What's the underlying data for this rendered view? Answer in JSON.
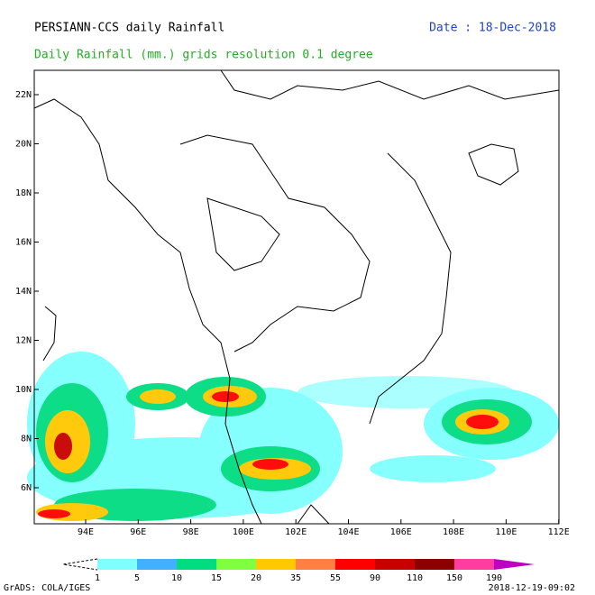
{
  "header": {
    "title": "PERSIANN-CCS daily Rainfall",
    "date": "Date : 18-Dec-2018",
    "subtitle": "Daily Rainfall (mm.) grids resolution 0.1 degree"
  },
  "map": {
    "lat_labels": [
      "22N",
      "20N",
      "18N",
      "16N",
      "14N",
      "12N",
      "10N",
      "8N",
      "6N"
    ],
    "lon_labels": [
      "94E",
      "96E",
      "98E",
      "100E",
      "102E",
      "104E",
      "106E",
      "108E",
      "110E",
      "112E"
    ]
  },
  "legend": {
    "labels": [
      "1",
      "5",
      "10",
      "15",
      "20",
      "35",
      "55",
      "90",
      "110",
      "150",
      "190"
    ],
    "colors": [
      "#80ffff",
      "#40b0ff",
      "#00dc80",
      "#80ff40",
      "#ffc800",
      "#ff8040",
      "#ff0000",
      "#c80000",
      "#8c0000",
      "#ff3ca0"
    ],
    "over_color": "#c000c0"
  },
  "footer": {
    "left": "GrADS: COLA/IGES",
    "right": "2018-12-19-09:02"
  }
}
